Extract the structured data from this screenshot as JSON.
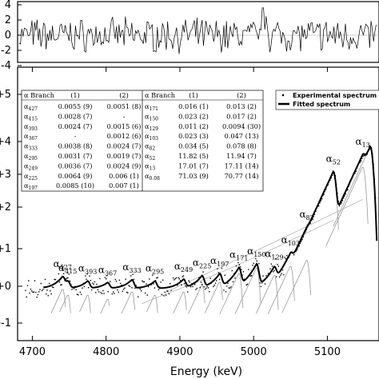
{
  "chart_data": [
    {
      "type": "line",
      "panel": "residuals",
      "yticks": [
        "4",
        "2",
        "0",
        "-2",
        "-4"
      ],
      "ylim": [
        -4,
        4
      ]
    },
    {
      "type": "scatter",
      "panel": "spectrum",
      "xlabel": "Energy (keV)",
      "xticks": [
        "4700",
        "4800",
        "4900",
        "5000",
        "5100"
      ],
      "xlim": [
        4680,
        5170
      ],
      "yticks": [
        "+5",
        "+4",
        "+3",
        "+2",
        "+1",
        "+0",
        "e-1"
      ],
      "legend": {
        "placement": "top-right",
        "entries": [
          "Experimental spectrum",
          "Fitted spectrum"
        ]
      },
      "peak_labels": [
        {
          "label": "427",
          "energy": 4741
        },
        {
          "label": "415",
          "energy": 4748
        },
        {
          "label": "393",
          "energy": 4775
        },
        {
          "label": "367",
          "energy": 4802
        },
        {
          "label": "333",
          "energy": 4835
        },
        {
          "label": "295",
          "energy": 4866
        },
        {
          "label": "249",
          "energy": 4905
        },
        {
          "label": "225",
          "energy": 4930
        },
        {
          "label": "197",
          "energy": 4954
        },
        {
          "label": "171",
          "energy": 4980
        },
        {
          "label": "150",
          "energy": 5004
        },
        {
          "label": "129",
          "energy": 5028
        },
        {
          "label": "103",
          "energy": 5050
        },
        {
          "label": "82",
          "energy": 5072
        },
        {
          "label": "52",
          "energy": 5108
        },
        {
          "label": "13",
          "energy": 5148
        }
      ],
      "table": {
        "left": {
          "headers": [
            "α Branch",
            "(1)",
            "(2)"
          ],
          "rows": [
            [
              "427",
              "0.0055 (9)",
              "0.0051 (8)"
            ],
            [
              "415",
              "0.0028 (7)",
              "-"
            ],
            [
              "393",
              "0.0024 (7)",
              "0.0015 (6)"
            ],
            [
              "367",
              "-",
              "0.0012 (6)"
            ],
            [
              "333",
              "0.0038 (8)",
              "0.0024 (7)"
            ],
            [
              "295",
              "0.0031 (7)",
              "0.0019 (7)"
            ],
            [
              "249",
              "0.0036 (7)",
              "0.0024 (9)"
            ],
            [
              "225",
              "0.0064 (9)",
              "0.006 (1)"
            ],
            [
              "197",
              "0.0085 (10)",
              "0.007 (1)"
            ]
          ]
        },
        "right": {
          "headers": [
            "α Branch",
            "(1)",
            "(2)"
          ],
          "rows": [
            [
              "171",
              "0.016 (1)",
              "0.013 (2)"
            ],
            [
              "150",
              "0.023 (2)",
              "0.017 (2)"
            ],
            [
              "129",
              "0.011 (2)",
              "0.0094 (30)"
            ],
            [
              "103",
              "0.023 (3)",
              "0.047 (13)"
            ],
            [
              "82",
              "0.034 (5)",
              "0.078 (8)"
            ],
            [
              "52",
              "11.82 (5)",
              "11.94 (7)"
            ],
            [
              "13",
              "17.01 (7)",
              "17.11 (14)"
            ],
            [
              "0.08",
              "71.03 (9)",
              "70.77 (14)"
            ]
          ]
        }
      }
    }
  ]
}
